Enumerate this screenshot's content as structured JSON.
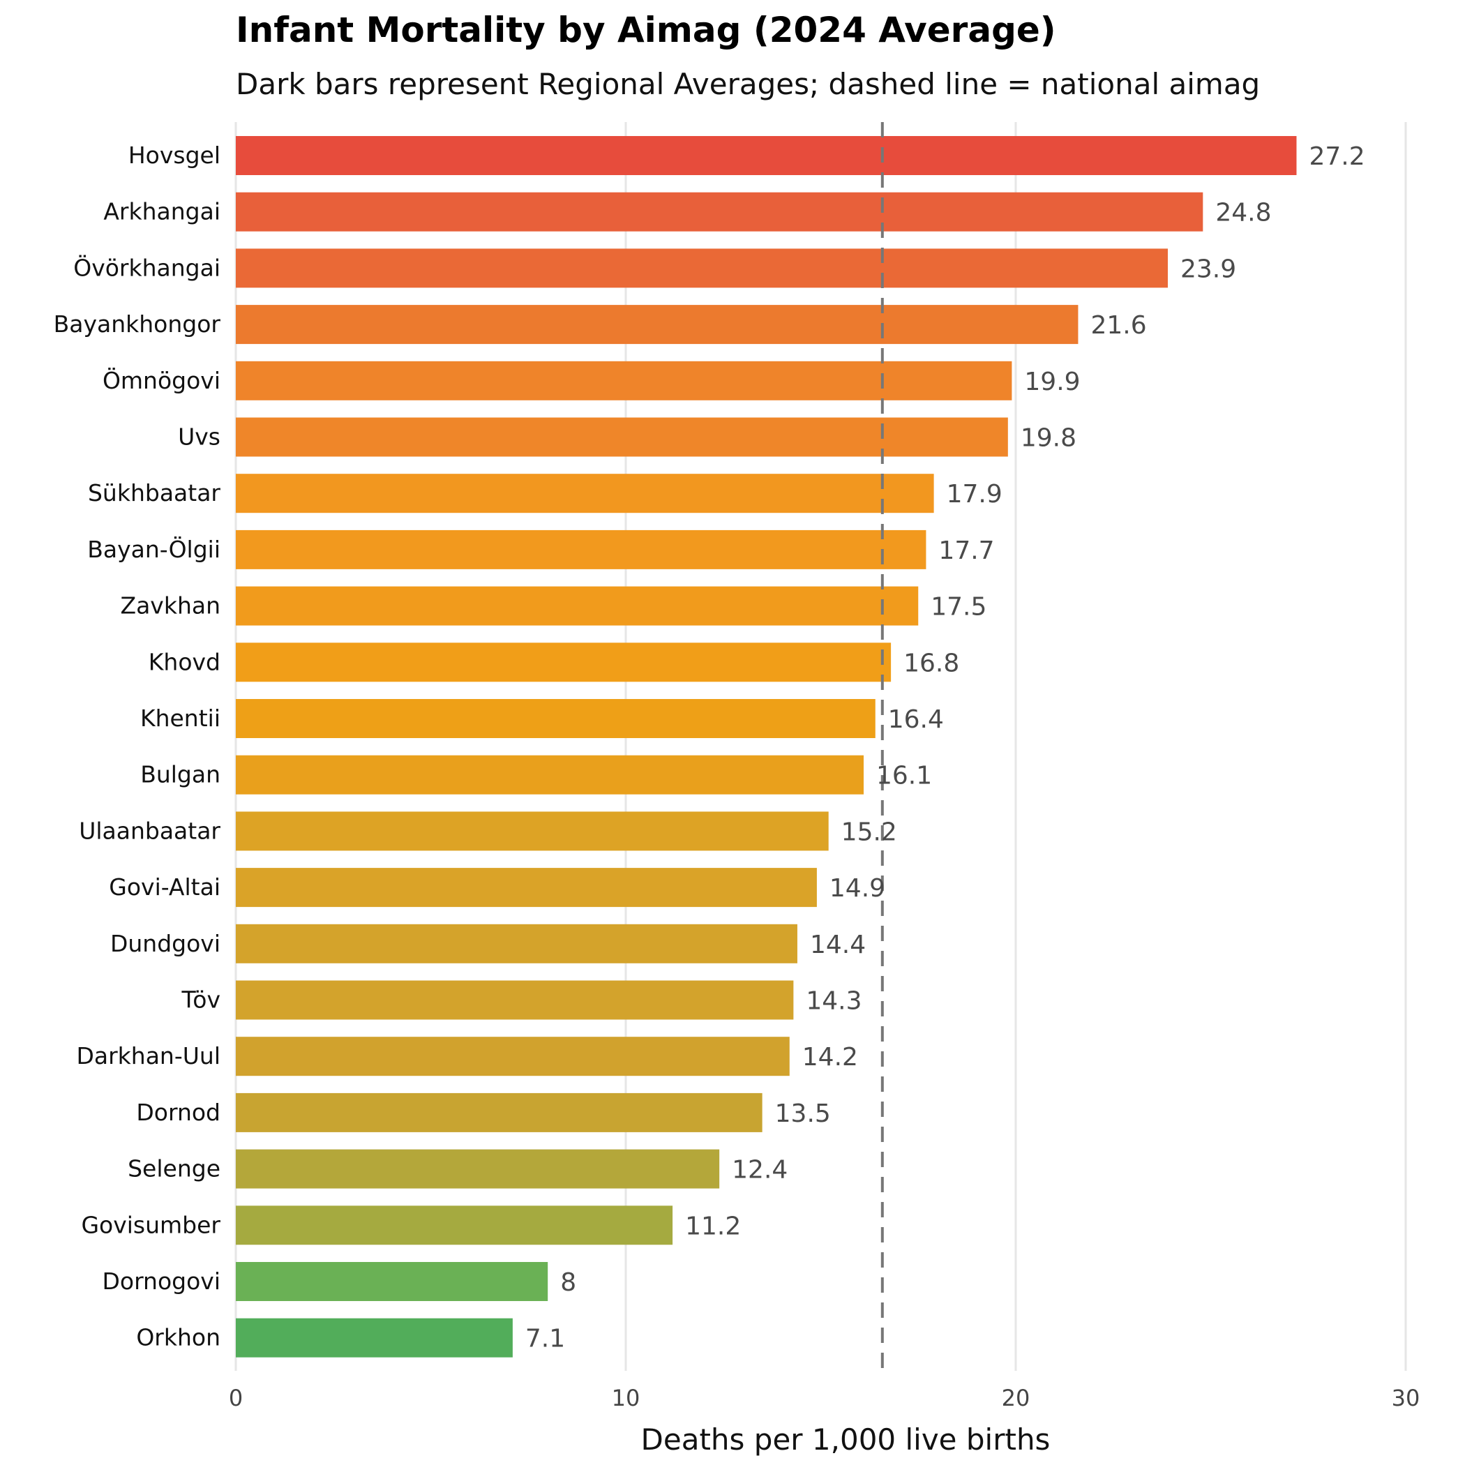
{
  "chart_data": {
    "type": "bar",
    "orientation": "horizontal",
    "title": "Infant Mortality by Aimag (2024 Average)",
    "subtitle": "Dark bars represent Regional Averages; dashed line = national aimag",
    "xlabel": "Deaths per 1,000 live births",
    "ylabel": "",
    "xlim": [
      0,
      30
    ],
    "xticks": [
      "0",
      "10",
      "20",
      "30"
    ],
    "grid": "vertical",
    "reference_line": {
      "style": "dashed",
      "value": 16.58,
      "color": "#777777"
    },
    "categories": [
      "Hovsgel",
      "Arkhangai",
      "Övörkhangai",
      "Bayankhongor",
      "Ömnögovi",
      "Uvs",
      "Sükhbaatar",
      "Bayan-Ölgii",
      "Zavkhan",
      "Khovd",
      "Khentii",
      "Bulgan",
      "Ulaanbaatar",
      "Govi-Altai",
      "Dundgovi",
      "Töv",
      "Darkhan-Uul",
      "Dornod",
      "Selenge",
      "Govisumber",
      "Dornogovi",
      "Orkhon"
    ],
    "values": [
      27.2,
      24.8,
      23.9,
      21.6,
      19.9,
      19.8,
      17.9,
      17.7,
      17.5,
      16.8,
      16.4,
      16.1,
      15.2,
      14.9,
      14.4,
      14.3,
      14.2,
      13.5,
      12.4,
      11.2,
      8,
      7.1
    ],
    "value_labels": [
      "27.2",
      "24.8",
      "23.9",
      "21.6",
      "19.9",
      "19.8",
      "17.9",
      "17.7",
      "17.5",
      "16.8",
      "16.4",
      "16.1",
      "15.2",
      "14.9",
      "14.4",
      "14.3",
      "14.2",
      "13.5",
      "12.4",
      "11.2",
      "8",
      "7.1"
    ],
    "colors": [
      "#e74c3c",
      "#e8603a",
      "#ea6936",
      "#ec7a2e",
      "#ef842a",
      "#ef8629",
      "#f2971f",
      "#f2991e",
      "#f19b1c",
      "#f19e18",
      "#eea017",
      "#e9a01c",
      "#dda325",
      "#daa328",
      "#d4a32b",
      "#d3a32c",
      "#d1a22d",
      "#c8a431",
      "#b4a73a",
      "#a5aa40",
      "#6ab155",
      "#52ad5a"
    ]
  }
}
